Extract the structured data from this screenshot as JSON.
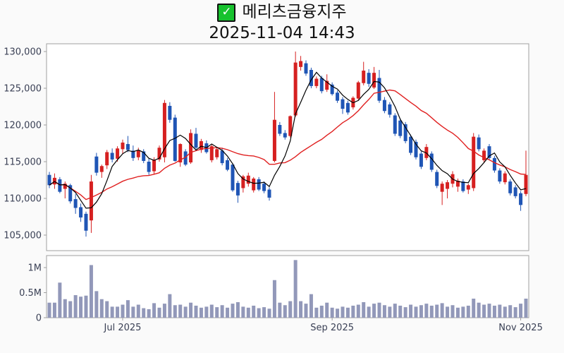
{
  "header": {
    "title": "메리츠금융지주",
    "datetime": "2025-11-04 14:43",
    "checkbox_icon": "✓",
    "checkbox_color": "#17c22e"
  },
  "chart_data": {
    "type": "candlestick+volume",
    "title": "메리츠금융지주",
    "subtitle": "2025-11-04 14:43",
    "legend": "none",
    "grid": "off",
    "price_axis": {
      "side": "left",
      "ticks": [
        130000,
        125000,
        120000,
        115000,
        110000,
        105000
      ],
      "tick_labels": [
        "130,000",
        "125,000",
        "120,000",
        "115,000",
        "110,000",
        "105,000"
      ],
      "range": [
        103500,
        131000
      ]
    },
    "volume_axis": {
      "side": "left",
      "ticks": [
        1000000,
        500000,
        0
      ],
      "tick_labels": [
        "1M",
        "0.5M",
        "0"
      ],
      "range": [
        0,
        1250000
      ]
    },
    "x_axis": {
      "tick_indices": [
        14,
        54,
        90
      ],
      "tick_labels": [
        "Jul 2025",
        "Sep 2025",
        "Nov 2025"
      ]
    },
    "ma_short_window": 5,
    "ma_long_window": 20,
    "colors": {
      "up": "#d62020",
      "down": "#1f55b5",
      "ma_short": "#000000",
      "ma_long": "#e02020",
      "volume_bar": "#9298b9",
      "panel_border": "#a0a0a0",
      "panel_fill": "#ffffff",
      "axis_text": "#3a4055"
    },
    "candles": [
      [
        113200,
        113600,
        111400,
        111800,
        300000
      ],
      [
        111900,
        113400,
        111300,
        112800,
        300000
      ],
      [
        112600,
        112900,
        110700,
        110900,
        700000
      ],
      [
        111300,
        112300,
        110000,
        112000,
        370000
      ],
      [
        111800,
        112000,
        109300,
        109600,
        330000
      ],
      [
        109900,
        110600,
        107900,
        108700,
        450000
      ],
      [
        108800,
        109300,
        106800,
        107400,
        420000
      ],
      [
        107900,
        108200,
        104800,
        105600,
        440000
      ],
      [
        107000,
        113200,
        105300,
        112300,
        1050000
      ],
      [
        115700,
        116200,
        113100,
        113500,
        530000
      ],
      [
        113600,
        114600,
        112800,
        114400,
        370000
      ],
      [
        114500,
        116600,
        114000,
        116300,
        330000
      ],
      [
        116200,
        116800,
        114900,
        115300,
        220000
      ],
      [
        115400,
        117100,
        115000,
        116800,
        220000
      ],
      [
        116700,
        118000,
        116100,
        117600,
        260000
      ],
      [
        117400,
        118500,
        116300,
        116600,
        350000
      ],
      [
        116500,
        117200,
        115100,
        115500,
        220000
      ],
      [
        115600,
        116900,
        115200,
        116500,
        260000
      ],
      [
        116400,
        116700,
        114800,
        115100,
        190000
      ],
      [
        115000,
        115400,
        113200,
        113600,
        170000
      ],
      [
        113700,
        115600,
        113300,
        115200,
        290000
      ],
      [
        115300,
        117200,
        115000,
        116900,
        200000
      ],
      [
        115600,
        123400,
        114900,
        123000,
        280000
      ],
      [
        122600,
        123100,
        120300,
        120700,
        470000
      ],
      [
        121000,
        121400,
        115000,
        115100,
        250000
      ],
      [
        114900,
        117500,
        114300,
        117400,
        260000
      ],
      [
        116400,
        116700,
        114400,
        114600,
        220000
      ],
      [
        114900,
        119400,
        114700,
        118900,
        300000
      ],
      [
        118800,
        119600,
        116700,
        116900,
        240000
      ],
      [
        116600,
        118100,
        116200,
        117800,
        200000
      ],
      [
        117500,
        117900,
        116100,
        116300,
        220000
      ],
      [
        115200,
        117300,
        114900,
        117100,
        260000
      ],
      [
        115600,
        117000,
        115300,
        116700,
        210000
      ],
      [
        116500,
        116900,
        114500,
        114800,
        250000
      ],
      [
        115200,
        115500,
        113700,
        113900,
        200000
      ],
      [
        114600,
        114800,
        110900,
        111100,
        280000
      ],
      [
        112100,
        112400,
        109400,
        110400,
        310000
      ],
      [
        111400,
        113200,
        110800,
        113000,
        220000
      ],
      [
        112000,
        113500,
        111600,
        113100,
        200000
      ],
      [
        111100,
        112900,
        110800,
        112700,
        240000
      ],
      [
        112600,
        112900,
        111000,
        111200,
        190000
      ],
      [
        112000,
        112300,
        110700,
        111000,
        210000
      ],
      [
        111200,
        111500,
        109700,
        110100,
        180000
      ],
      [
        115100,
        124500,
        114900,
        120700,
        750000
      ],
      [
        120000,
        120400,
        118500,
        118800,
        300000
      ],
      [
        118900,
        119300,
        118000,
        118300,
        250000
      ],
      [
        118500,
        121300,
        118300,
        121200,
        330000
      ],
      [
        121300,
        130000,
        121100,
        128500,
        1150000
      ],
      [
        127900,
        129400,
        127400,
        128700,
        330000
      ],
      [
        128400,
        128800,
        126700,
        127000,
        280000
      ],
      [
        127500,
        127800,
        125000,
        125300,
        470000
      ],
      [
        125300,
        126600,
        125000,
        126300,
        200000
      ],
      [
        126400,
        126700,
        124300,
        124600,
        240000
      ],
      [
        124800,
        126900,
        124500,
        126000,
        300000
      ],
      [
        125500,
        125800,
        124000,
        124200,
        200000
      ],
      [
        124400,
        124700,
        123000,
        123300,
        180000
      ],
      [
        123500,
        123800,
        121500,
        122200,
        220000
      ],
      [
        123000,
        123300,
        121400,
        121700,
        200000
      ],
      [
        122400,
        123900,
        122100,
        123700,
        240000
      ],
      [
        123600,
        126000,
        123300,
        125800,
        260000
      ],
      [
        125700,
        128600,
        125400,
        127400,
        310000
      ],
      [
        127100,
        127600,
        125200,
        125600,
        220000
      ],
      [
        125100,
        127900,
        124900,
        127100,
        280000
      ],
      [
        126400,
        127500,
        123000,
        123300,
        300000
      ],
      [
        123400,
        123800,
        121600,
        121900,
        250000
      ],
      [
        122800,
        123100,
        121000,
        121400,
        220000
      ],
      [
        121300,
        121600,
        118500,
        118800,
        280000
      ],
      [
        120600,
        120900,
        118200,
        118500,
        240000
      ],
      [
        120100,
        120400,
        117500,
        117800,
        210000
      ],
      [
        118400,
        118700,
        115900,
        116200,
        260000
      ],
      [
        117700,
        118000,
        115300,
        115600,
        220000
      ],
      [
        116100,
        116400,
        114000,
        114300,
        250000
      ],
      [
        115500,
        117400,
        115200,
        117000,
        280000
      ],
      [
        116100,
        116400,
        113600,
        113900,
        240000
      ],
      [
        113600,
        113900,
        111400,
        111700,
        260000
      ],
      [
        110900,
        112300,
        109100,
        112000,
        290000
      ],
      [
        111300,
        112500,
        110000,
        112200,
        220000
      ],
      [
        112000,
        113700,
        111500,
        113300,
        250000
      ],
      [
        111600,
        112700,
        110900,
        112400,
        200000
      ],
      [
        112300,
        112600,
        110800,
        111000,
        220000
      ],
      [
        111200,
        112000,
        110600,
        111800,
        240000
      ],
      [
        111400,
        118900,
        111000,
        118400,
        380000
      ],
      [
        118300,
        118700,
        116400,
        116700,
        300000
      ],
      [
        115200,
        116800,
        114900,
        116500,
        260000
      ],
      [
        117100,
        117400,
        115200,
        115500,
        280000
      ],
      [
        115500,
        115800,
        113500,
        113800,
        240000
      ],
      [
        113800,
        114100,
        112000,
        112300,
        260000
      ],
      [
        112200,
        113700,
        111900,
        113400,
        220000
      ],
      [
        112300,
        112600,
        110400,
        110700,
        250000
      ],
      [
        111500,
        111800,
        110000,
        110300,
        210000
      ],
      [
        110700,
        111000,
        108300,
        109100,
        280000
      ],
      [
        110600,
        116500,
        110300,
        113200,
        380000
      ]
    ]
  }
}
